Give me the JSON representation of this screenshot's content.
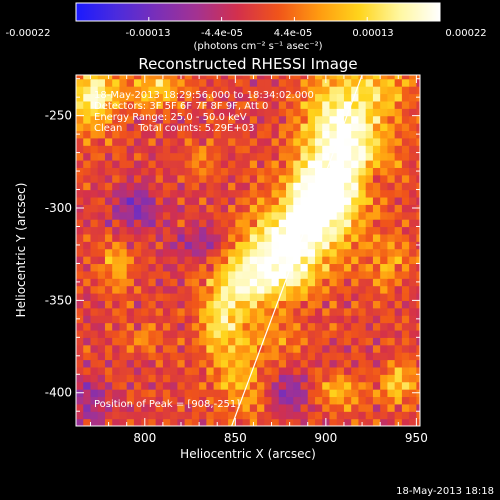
{
  "colorbar": {
    "ticks": [
      "-0.00022",
      "-0.00013",
      "-4.4e-05",
      "4.4e-05",
      "0.00013",
      "0.00022"
    ],
    "unit_label": "(photons cm⁻² s⁻¹ asec⁻²)",
    "stops": [
      "#1a1aff",
      "#4b2bdd",
      "#7a2fb8",
      "#a43290",
      "#d3304c",
      "#f0541a",
      "#ff9a10",
      "#ffd41c",
      "#fff7a0",
      "#ffffff"
    ]
  },
  "annotations": {
    "time_range": "18-May-2013 18:29:56.000 to 18:34:02.000",
    "detectors": "Detectors: 3F 5F 6F 7F 8F 9F, Att 0",
    "energy": "Energy Range: 25.0 - 50.0 keV",
    "clean": "Clean     Total counts: 5.29E+03",
    "peak": "Position of Peak = [908,-251]"
  },
  "footer_timestamp": "18-May-2013 18:18",
  "chart_data": {
    "type": "heatmap",
    "title": "Reconstructed RHESSI Image",
    "xlabel": "Heliocentric X (arcsec)",
    "ylabel": "Heliocentric Y (arcsec)",
    "xlim": [
      762,
      952
    ],
    "ylim": [
      -418,
      -228
    ],
    "xticks": [
      800,
      850,
      900,
      950
    ],
    "yticks": [
      -250,
      -300,
      -350,
      -400
    ],
    "peak_position": [
      908,
      -251
    ],
    "value_range": [
      -0.00022,
      0.00022
    ],
    "limb_line": {
      "x": [
        848,
        920
      ],
      "y": [
        -418,
        -228
      ]
    },
    "emission_sources": [
      {
        "x": 910,
        "y": -262,
        "sx": 15,
        "sy": 25,
        "amp": 0.00024
      },
      {
        "x": 897,
        "y": -295,
        "sx": 12,
        "sy": 14,
        "amp": 0.00023
      },
      {
        "x": 880,
        "y": -320,
        "sx": 16,
        "sy": 16,
        "amp": 0.00022
      },
      {
        "x": 858,
        "y": -338,
        "sx": 15,
        "sy": 12,
        "amp": 0.00016
      },
      {
        "x": 842,
        "y": -362,
        "sx": 8,
        "sy": 13,
        "amp": 0.00014
      },
      {
        "x": 853,
        "y": -395,
        "sx": 10,
        "sy": 12,
        "amp": 9e-05
      },
      {
        "x": 868,
        "y": -370,
        "sx": 12,
        "sy": 8,
        "amp": 7e-05
      },
      {
        "x": 772,
        "y": -240,
        "sx": 8,
        "sy": 12,
        "amp": 0.00019
      },
      {
        "x": 805,
        "y": -235,
        "sx": 12,
        "sy": 7,
        "amp": 0.00012
      },
      {
        "x": 785,
        "y": -330,
        "sx": 6,
        "sy": 10,
        "amp": 9e-05
      },
      {
        "x": 935,
        "y": -330,
        "sx": 10,
        "sy": 12,
        "amp": 7e-05
      },
      {
        "x": 940,
        "y": -395,
        "sx": 8,
        "sy": 8,
        "amp": 0.00011
      },
      {
        "x": 908,
        "y": -400,
        "sx": 8,
        "sy": 7,
        "amp": 0.0001
      },
      {
        "x": 935,
        "y": -235,
        "sx": 10,
        "sy": 8,
        "amp": 8e-05
      },
      {
        "x": 830,
        "y": -275,
        "sx": 6,
        "sy": 6,
        "amp": 6e-05
      },
      {
        "x": 800,
        "y": -372,
        "sx": 7,
        "sy": 6,
        "amp": 5e-05
      },
      {
        "x": 795,
        "y": -300,
        "sx": 10,
        "sy": 10,
        "amp": -0.0001
      },
      {
        "x": 880,
        "y": -400,
        "sx": 8,
        "sy": 8,
        "amp": -0.0001
      },
      {
        "x": 830,
        "y": -320,
        "sx": 10,
        "sy": 8,
        "amp": -9e-05
      },
      {
        "x": 770,
        "y": -405,
        "sx": 8,
        "sy": 8,
        "amp": -0.0001
      },
      {
        "x": 925,
        "y": -285,
        "sx": 6,
        "sy": 6,
        "amp": -7e-05
      }
    ]
  }
}
